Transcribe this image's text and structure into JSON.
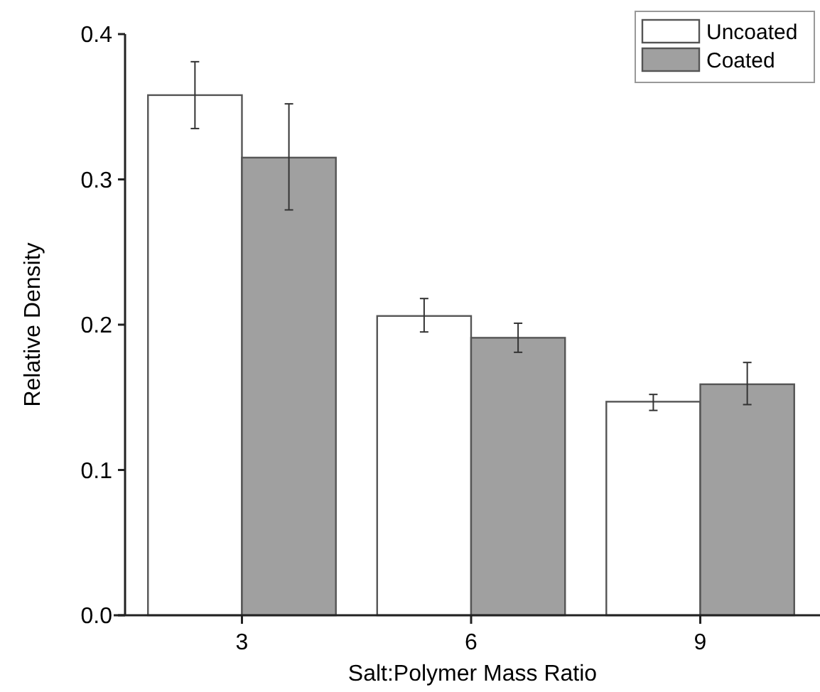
{
  "chart_data": {
    "type": "bar",
    "xlabel": "Salt:Polymer Mass Ratio",
    "ylabel": "Relative Density",
    "categories": [
      "3",
      "6",
      "9"
    ],
    "series": [
      {
        "name": "Uncoated",
        "color": "#ffffff",
        "values": [
          0.358,
          0.206,
          0.147
        ],
        "errors": [
          [
            0.335,
            0.381
          ],
          [
            0.195,
            0.218
          ],
          [
            0.141,
            0.152
          ]
        ]
      },
      {
        "name": "Coated",
        "color": "#a0a0a0",
        "values": [
          0.315,
          0.191,
          0.159
        ],
        "errors": [
          [
            0.279,
            0.352
          ],
          [
            0.181,
            0.201
          ],
          [
            0.145,
            0.174
          ]
        ]
      }
    ],
    "ylim": [
      0,
      0.4
    ],
    "yticks": [
      {
        "value": 0,
        "label": "0.0"
      },
      0.1,
      0.2,
      0.3,
      0.4
    ],
    "legend": "top right",
    "grid": false
  }
}
